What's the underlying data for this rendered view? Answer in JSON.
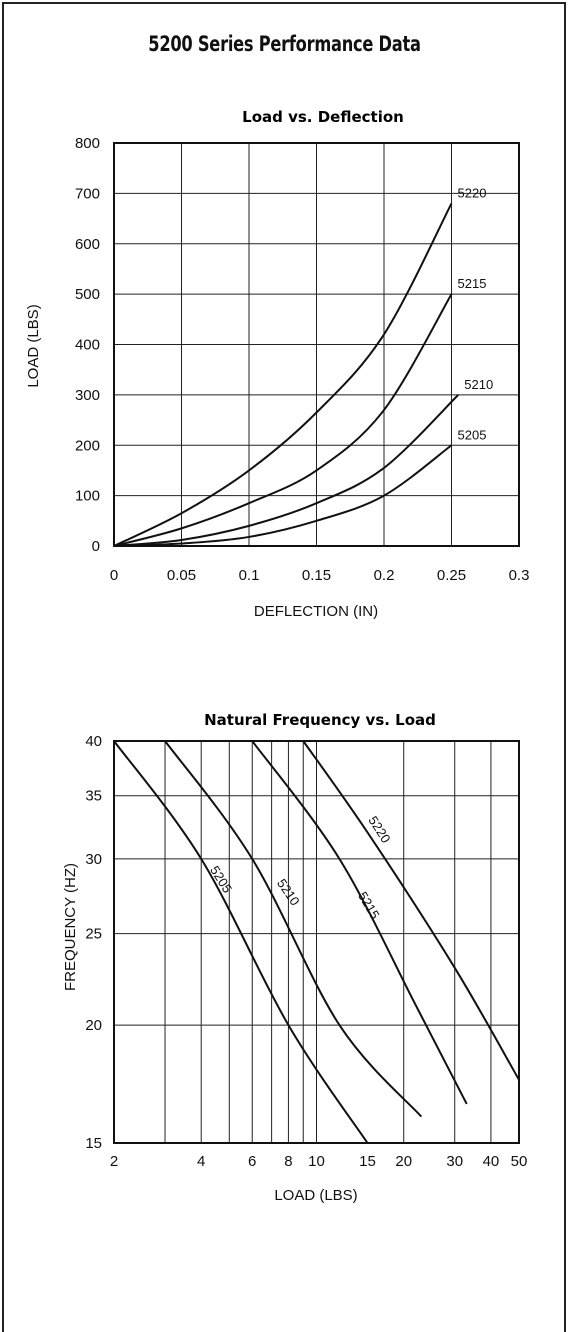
{
  "page": {
    "title": "5200 Series Performance Data"
  },
  "chart_data": [
    {
      "type": "line",
      "title": "Load vs. Deflection",
      "xlabel": "DEFLECTION (IN)",
      "ylabel": "LOAD (LBS)",
      "xlim": [
        0,
        0.3
      ],
      "ylim": [
        0,
        800
      ],
      "xticks": [
        0,
        0.05,
        0.1,
        0.15,
        0.2,
        0.25,
        0.3
      ],
      "xtick_labels": [
        "0",
        "0.05",
        "0.1",
        "0.15",
        "0.2",
        "0.25",
        "0.3"
      ],
      "yticks": [
        0,
        100,
        200,
        300,
        400,
        500,
        600,
        700,
        800
      ],
      "ytick_labels": [
        "0",
        "100",
        "200",
        "300",
        "400",
        "500",
        "600",
        "700",
        "800"
      ],
      "grid": true,
      "series": [
        {
          "name": "5220",
          "x": [
            0,
            0.05,
            0.1,
            0.15,
            0.2,
            0.25
          ],
          "y": [
            0,
            65,
            150,
            265,
            420,
            680
          ]
        },
        {
          "name": "5215",
          "x": [
            0,
            0.05,
            0.1,
            0.15,
            0.2,
            0.25
          ],
          "y": [
            0,
            35,
            85,
            150,
            270,
            500
          ]
        },
        {
          "name": "5210",
          "x": [
            0,
            0.05,
            0.1,
            0.15,
            0.2,
            0.255
          ],
          "y": [
            0,
            12,
            40,
            85,
            155,
            300
          ]
        },
        {
          "name": "5205",
          "x": [
            0,
            0.05,
            0.1,
            0.15,
            0.2,
            0.25
          ],
          "y": [
            0,
            5,
            18,
            50,
            100,
            200
          ]
        }
      ]
    },
    {
      "type": "line",
      "title": "Natural Frequency vs. Load",
      "xlabel": "LOAD (LBS)",
      "ylabel": "FREQUENCY (HZ)",
      "xscale": "log",
      "yscale": "log",
      "xlim": [
        2,
        50
      ],
      "ylim": [
        15,
        40
      ],
      "xtick_labels": [
        "2",
        "4",
        "6",
        "8",
        "10",
        "15",
        "20",
        "30",
        "40",
        "50"
      ],
      "xticks": [
        2,
        4,
        6,
        8,
        10,
        15,
        20,
        30,
        40,
        50
      ],
      "ytick_labels": [
        "15",
        "20",
        "25",
        "30",
        "35",
        "40"
      ],
      "yticks": [
        15,
        20,
        25,
        30,
        35,
        40
      ],
      "grid": true,
      "series": [
        {
          "name": "5205",
          "x": [
            2,
            4,
            8,
            15
          ],
          "y": [
            40,
            30,
            20,
            15
          ]
        },
        {
          "name": "5210",
          "x": [
            3,
            6,
            12,
            23
          ],
          "y": [
            40,
            30,
            20,
            16
          ]
        },
        {
          "name": "5215",
          "x": [
            6,
            12,
            22,
            33
          ],
          "y": [
            40,
            30,
            21,
            16.5
          ]
        },
        {
          "name": "5220",
          "x": [
            9,
            15,
            30,
            50
          ],
          "y": [
            40,
            32,
            23,
            17.5
          ]
        }
      ]
    }
  ]
}
